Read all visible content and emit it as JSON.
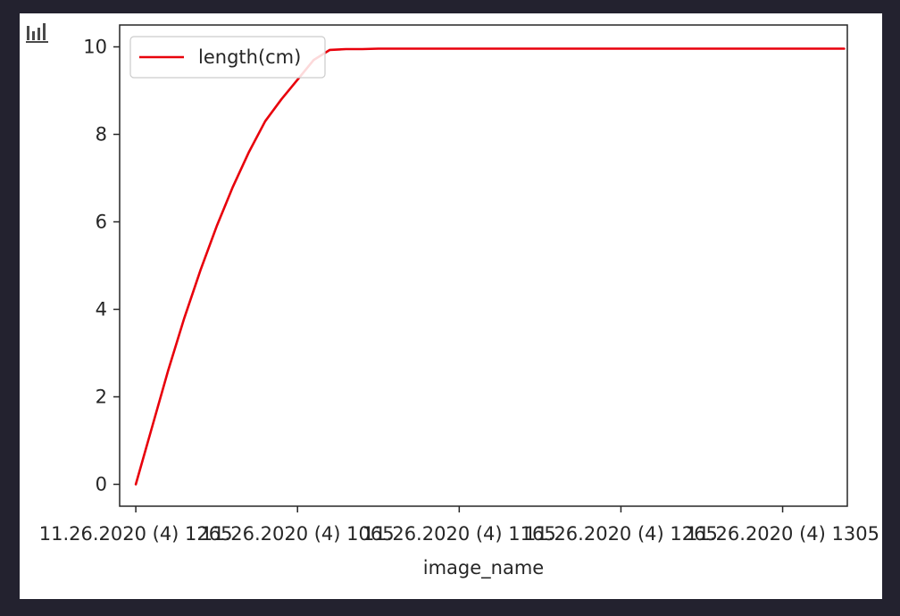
{
  "toolbar": {
    "icon": "bar-chart-icon"
  },
  "chart_data": {
    "type": "line",
    "title": "",
    "xlabel": "image_name",
    "ylabel": "",
    "ylim": [
      -0.5,
      10.5
    ],
    "yticks": [
      0,
      2,
      4,
      6,
      8,
      10
    ],
    "xlim": [
      -5,
      220
    ],
    "xtick_positions": [
      0,
      50,
      100,
      150,
      200,
      250
    ],
    "xtick_labels": [
      "11.26.2020 (4) 1265",
      "11.26.2020 (4) 1065",
      "11.26.2020 (4) 1165",
      "11.26.2020 (4) 1265",
      "11.26.2020 (4) 1305",
      ""
    ],
    "xtick_labels_visible": [
      "11.26.2020 (4)",
      "11.26.2020 (4)",
      "11.26.2020 (4)",
      "11.26.2020 (4)",
      "11.26.2020 (4) 1305"
    ],
    "grid": false,
    "legend": {
      "placement": "top-left"
    },
    "series": [
      {
        "name": "length(cm)",
        "color": "#e8000b",
        "x": [
          0,
          5,
          10,
          15,
          20,
          25,
          30,
          35,
          40,
          45,
          50,
          55,
          60,
          65,
          70,
          75,
          80,
          85,
          90,
          95,
          100,
          110,
          120,
          130,
          140,
          150,
          160,
          170,
          180,
          190,
          200,
          210,
          219
        ],
        "y": [
          0,
          1.3,
          2.6,
          3.8,
          4.9,
          5.9,
          6.8,
          7.6,
          8.3,
          8.8,
          9.25,
          9.7,
          9.93,
          9.95,
          9.95,
          9.96,
          9.96,
          9.96,
          9.96,
          9.96,
          9.96,
          9.96,
          9.96,
          9.96,
          9.96,
          9.96,
          9.96,
          9.96,
          9.96,
          9.96,
          9.96,
          9.96,
          9.96
        ]
      }
    ]
  }
}
